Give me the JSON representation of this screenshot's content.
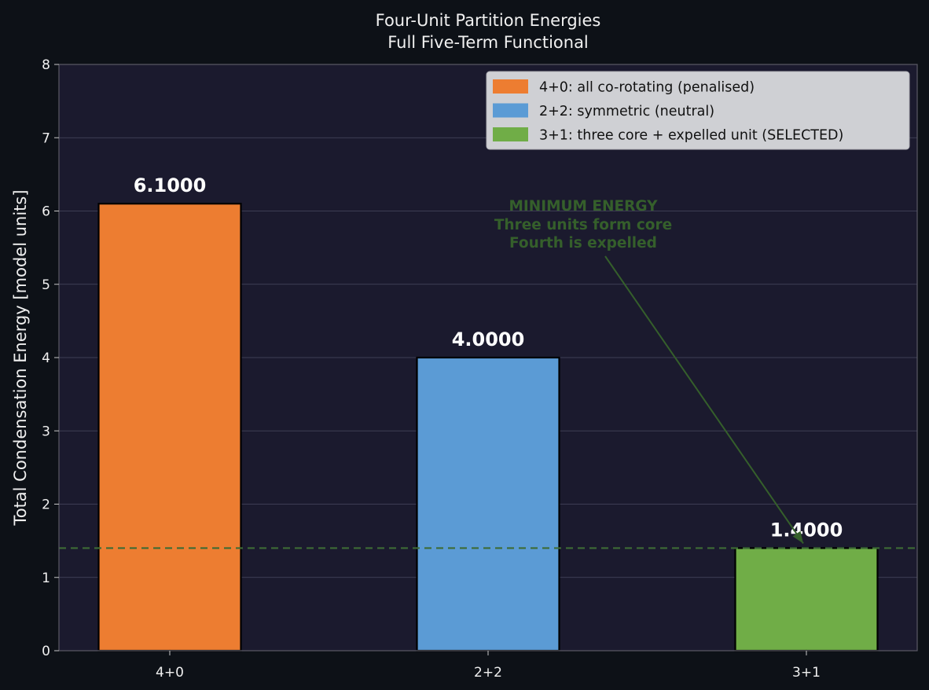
{
  "chart_data": {
    "type": "bar",
    "title": "Four-Unit Partition Energies",
    "subtitle": "Full Five-Term Functional",
    "xlabel": "",
    "ylabel": "Total Condensation Energy  [model units]",
    "categories": [
      "4+0",
      "2+2",
      "3+1"
    ],
    "values": [
      6.1,
      4.0,
      1.4
    ],
    "value_labels": [
      "6.1000",
      "4.0000",
      "1.4000"
    ],
    "colors": [
      "#ed7d31",
      "#5b9bd5",
      "#70ad47"
    ],
    "ylim": [
      0,
      8
    ],
    "yticks": [
      0,
      1,
      2,
      3,
      4,
      5,
      6,
      7,
      8
    ],
    "grid": "horizontal",
    "legend_position": "top-right",
    "legend": [
      {
        "label": "4+0: all co-rotating (penalised)",
        "color": "#ed7d31"
      },
      {
        "label": "2+2: symmetric (neutral)",
        "color": "#5b9bd5"
      },
      {
        "label": "3+1: three core + expelled unit (SELECTED)",
        "color": "#70ad47"
      }
    ],
    "reference_line": {
      "y": 1.4,
      "style": "dashed",
      "color": "#3d6b35"
    },
    "annotation": {
      "lines": [
        "MINIMUM ENERGY",
        "Three units form core",
        "Fourth is expelled"
      ],
      "target_category": "3+1",
      "target_value": 1.4,
      "color": "#355f2b"
    },
    "colors_theme": {
      "background": "#0d1117",
      "plot_background": "#1b1a2e",
      "text": "#f0f0f0",
      "grid": "#4a4a62"
    }
  }
}
